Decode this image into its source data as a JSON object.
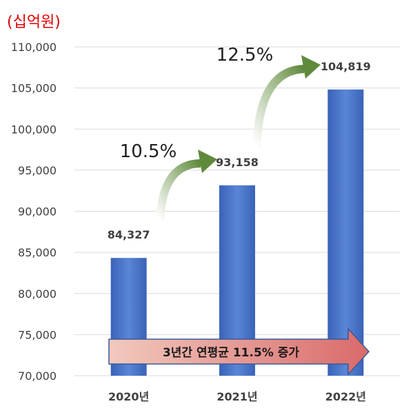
{
  "unit_label": "(십억원)",
  "chart_data": {
    "type": "bar",
    "categories": [
      "2020년",
      "2021년",
      "2022년"
    ],
    "values": [
      84327,
      93158,
      104819
    ],
    "value_labels": [
      "84,327",
      "93,158",
      "104,819"
    ],
    "ylim": [
      70000,
      110000
    ],
    "yticks": [
      70000,
      75000,
      80000,
      85000,
      90000,
      95000,
      100000,
      105000,
      110000
    ],
    "ytick_labels": [
      "70,000",
      "75,000",
      "80,000",
      "85,000",
      "90,000",
      "95,000",
      "100,000",
      "105,000",
      "110,000"
    ],
    "grid": true,
    "bar_color": "#4472c4",
    "growth_annotations": [
      "10.5%",
      "12.5%"
    ],
    "summary_banner": "3년간 연평균 11.5% 증가",
    "xlabel": "",
    "ylabel": ""
  }
}
